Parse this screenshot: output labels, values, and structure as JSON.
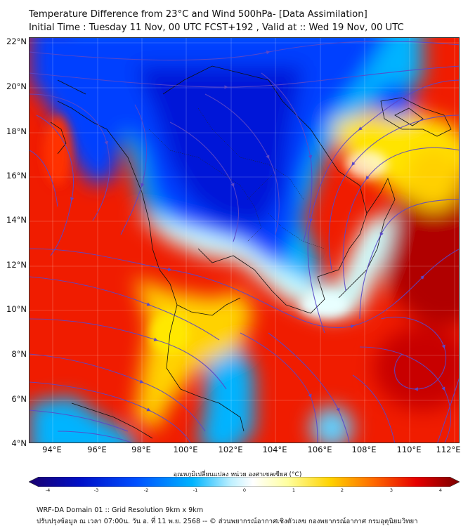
{
  "header": {
    "title_line1": "Temperature Difference from 23°C and Wind 500hPa- [Data Assimilation]",
    "title_line2": "Initial Time : Tuesday 11 Nov, 00 UTC FCST+192 , Valid at ::  Wed 19 Nov, 00 UTC"
  },
  "map": {
    "lat_labels": [
      "22°N",
      "20°N",
      "18°N",
      "16°N",
      "14°N",
      "12°N",
      "10°N",
      "8°N",
      "6°N",
      "4°N"
    ],
    "lon_labels": [
      "94°E",
      "96°E",
      "98°E",
      "100°E",
      "102°E",
      "104°E",
      "106°E",
      "108°E",
      "110°E",
      "112°E"
    ],
    "streamline_color": "#5a48c8"
  },
  "colorbar": {
    "label": "อุณหภูมิเปลี่ยนแปลง หน่วย องศาเซลเซียส (°C)",
    "ticks": [
      "-4",
      "-3",
      "-2",
      "-1",
      "0",
      "1",
      "2",
      "3",
      "4"
    ],
    "colors": [
      "#1a006e",
      "#0010c8",
      "#0050ff",
      "#00b4ff",
      "#bff0ff",
      "#ffffff",
      "#ffffa0",
      "#ffd200",
      "#ff6a00",
      "#e60000",
      "#7a0000"
    ]
  },
  "footer": {
    "line1": "WRF-DA Domain 01 :: Grid Resolution 9km x 9km",
    "line2": "ปรับปรุงข้อมูล ณ เวลา 07:00น. วัน อ. ที่ 11 พ.ย. 2568 -- © ส่วนพยากรณ์อากาศเชิงตัวเลข กองพยากรณ์อากาศ กรมอุตุนิยมวิทยา"
  }
}
